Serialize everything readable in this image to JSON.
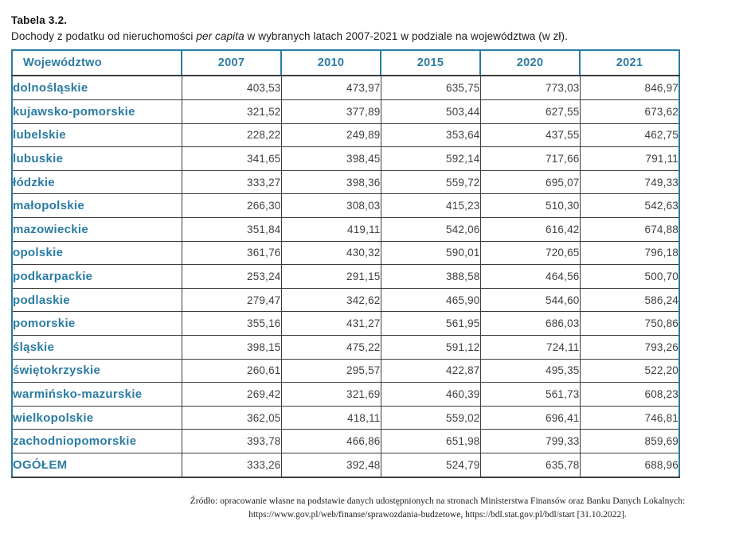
{
  "page": {
    "title": "Tabela 3.2.",
    "subtitle": {
      "pre": "Dochody z podatku od nieruchomości ",
      "italic": "per capita",
      "post": " w wybranych latach 2007-2021 w podziale na województwa (w zł)."
    }
  },
  "table": {
    "columns": [
      "Województwo",
      "2007",
      "2010",
      "2015",
      "2020",
      "2021"
    ],
    "rows": [
      {
        "name": "dolnośląskie",
        "values": [
          "403,53",
          "473,97",
          "635,75",
          "773,03",
          "846,97"
        ]
      },
      {
        "name": "kujawsko-pomorskie",
        "values": [
          "321,52",
          "377,89",
          "503,44",
          "627,55",
          "673,62"
        ]
      },
      {
        "name": "lubelskie",
        "values": [
          "228,22",
          "249,89",
          "353,64",
          "437,55",
          "462,75"
        ]
      },
      {
        "name": "lubuskie",
        "values": [
          "341,65",
          "398,45",
          "592,14",
          "717,66",
          "791,11"
        ]
      },
      {
        "name": "łódzkie",
        "values": [
          "333,27",
          "398,36",
          "559,72",
          "695,07",
          "749,33"
        ]
      },
      {
        "name": "małopolskie",
        "values": [
          "266,30",
          "308,03",
          "415,23",
          "510,30",
          "542,63"
        ]
      },
      {
        "name": "mazowieckie",
        "values": [
          "351,84",
          "419,11",
          "542,06",
          "616,42",
          "674,88"
        ]
      },
      {
        "name": "opolskie",
        "values": [
          "361,76",
          "430,32",
          "590,01",
          "720,65",
          "796,18"
        ]
      },
      {
        "name": "podkarpackie",
        "values": [
          "253,24",
          "291,15",
          "388,58",
          "464,56",
          "500,70"
        ]
      },
      {
        "name": "podlaskie",
        "values": [
          "279,47",
          "342,62",
          "465,90",
          "544,60",
          "586,24"
        ]
      },
      {
        "name": "pomorskie",
        "values": [
          "355,16",
          "431,27",
          "561,95",
          "686,03",
          "750,86"
        ]
      },
      {
        "name": "śląskie",
        "values": [
          "398,15",
          "475,22",
          "591,12",
          "724,11",
          "793,26"
        ]
      },
      {
        "name": "świętokrzyskie",
        "values": [
          "260,61",
          "295,57",
          "422,87",
          "495,35",
          "522,20"
        ]
      },
      {
        "name": "warmińsko-mazurskie",
        "values": [
          "269,42",
          "321,69",
          "460,39",
          "561,73",
          "608,23"
        ]
      },
      {
        "name": "wielkopolskie",
        "values": [
          "362,05",
          "418,11",
          "559,02",
          "696,41",
          "746,81"
        ]
      },
      {
        "name": "zachodniopomorskie",
        "values": [
          "393,78",
          "466,86",
          "651,98",
          "799,33",
          "859,69"
        ]
      },
      {
        "name": "OGÓŁEM",
        "values": [
          "333,26",
          "392,48",
          "524,79",
          "635,78",
          "688,96"
        ]
      }
    ]
  },
  "footnote": {
    "line1": "Źródło: opracowanie własne na podstawie danych udostępnionych na stronach Ministerstwa Finansów oraz Banku Danych Lokalnych:",
    "line2": "https://www.gov.pl/web/finanse/sprawozdania-budzetowe, https://bdl.stat.gov.pl/bdl/start [31.10.2022]."
  },
  "colors": {
    "accent": "#2b7ba3",
    "border_dark": "#3c3c3c",
    "value_text": "#3f3f3f"
  }
}
